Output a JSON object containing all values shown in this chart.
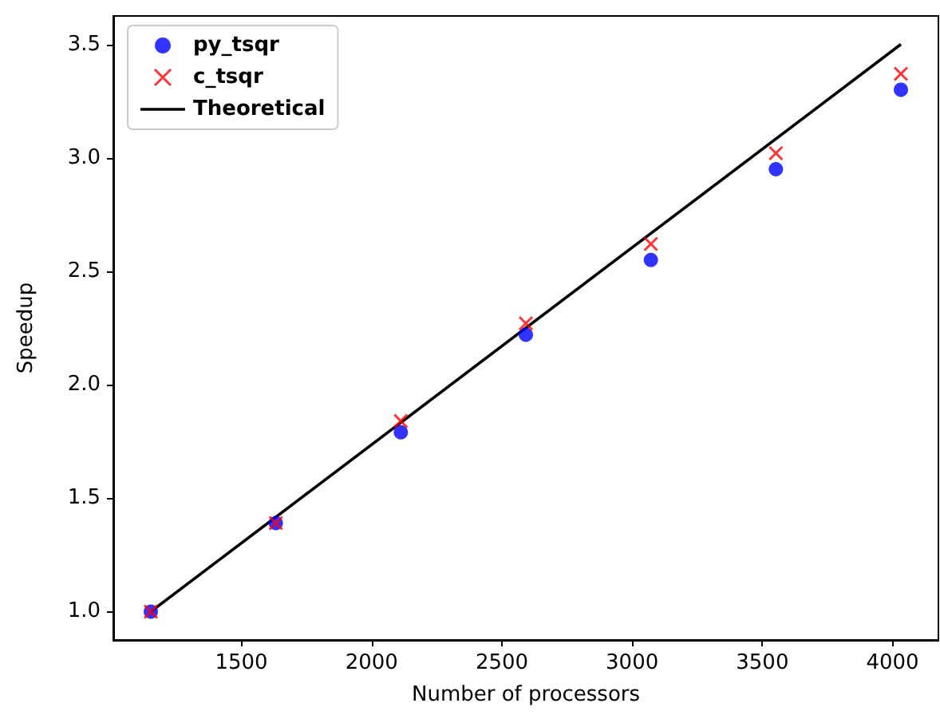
{
  "chart_data": {
    "type": "scatter",
    "xlabel": "Number of processors",
    "ylabel": "Speedup",
    "x": [
      1152,
      1632,
      2112,
      2592,
      3072,
      3552,
      4032
    ],
    "series": [
      {
        "name": "py_tsqr",
        "color": "#0000ff",
        "marker": "circle",
        "values": [
          1.0,
          1.39,
          1.79,
          2.22,
          2.55,
          2.95,
          3.3
        ]
      },
      {
        "name": "c_tsqr",
        "color": "#ff0000",
        "marker": "cross",
        "values": [
          1.0,
          1.39,
          1.84,
          2.27,
          2.62,
          3.02,
          3.37
        ]
      },
      {
        "name": "Theoretical",
        "type": "line",
        "color": "#000000",
        "marker": "none",
        "line_style": "solid",
        "x": [
          1152,
          4032
        ],
        "values": [
          1.0,
          3.5
        ]
      }
    ],
    "xlim": [
      1008,
      4176
    ],
    "xticks": [
      1500,
      2000,
      2500,
      3000,
      3500,
      4000
    ],
    "ylim": [
      0.875,
      3.625
    ],
    "yticks": [
      {
        "value": 1,
        "label": "1.0"
      },
      1.5,
      {
        "value": 2,
        "label": "2.0"
      },
      2.5,
      {
        "value": 3,
        "label": "3.0"
      },
      3.5
    ],
    "grid": false,
    "legend": "top left"
  }
}
